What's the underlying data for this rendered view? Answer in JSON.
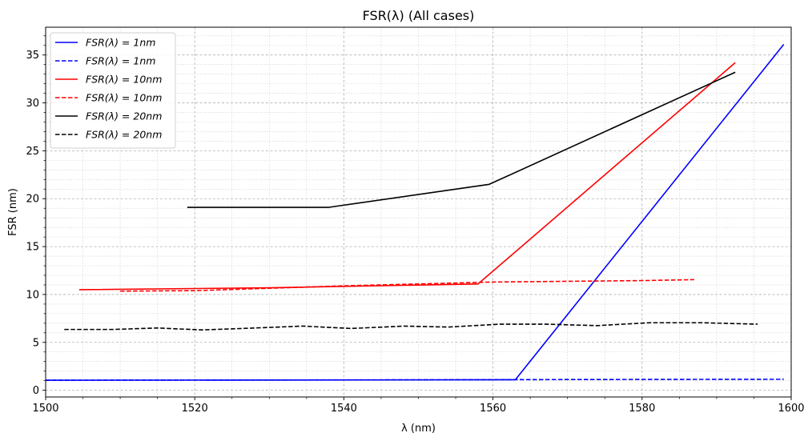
{
  "chart_data": {
    "type": "line",
    "title": "FSR(λ) (All cases)",
    "xlabel": "λ (nm)",
    "ylabel": "FSR (nm)",
    "xlim": [
      1500,
      1600
    ],
    "ylim": [
      -0.7,
      37.9
    ],
    "xticks": [
      1500,
      1520,
      1540,
      1560,
      1580,
      1600
    ],
    "yticks": [
      0,
      5,
      10,
      15,
      20,
      25,
      30,
      35
    ],
    "grid": true,
    "legend_position": "top-left",
    "series": [
      {
        "name": "FSR(λ) = 1nm",
        "color": "#0000ff",
        "dash": "solid",
        "x": [
          1500,
          1530,
          1563,
          1599
        ],
        "y": [
          1.05,
          1.07,
          1.1,
          36.1
        ]
      },
      {
        "name": "FSR(λ) = 1nm",
        "color": "#0000ff",
        "dash": "dashed",
        "x": [
          1500,
          1540,
          1570,
          1599
        ],
        "y": [
          1.05,
          1.08,
          1.12,
          1.15
        ]
      },
      {
        "name": "FSR(λ) = 10nm",
        "color": "#ff0000",
        "dash": "solid",
        "x": [
          1504.5,
          1530,
          1558,
          1592.5
        ],
        "y": [
          10.5,
          10.7,
          11.1,
          34.2
        ]
      },
      {
        "name": "FSR(λ) = 10nm",
        "color": "#ff0000",
        "dash": "dashed",
        "x": [
          1510,
          1520,
          1540,
          1560,
          1580,
          1587
        ],
        "y": [
          10.35,
          10.4,
          10.9,
          11.3,
          11.45,
          11.55
        ]
      },
      {
        "name": "FSR(λ) = 20nm",
        "color": "#000000",
        "dash": "solid",
        "x": [
          1519,
          1538,
          1559.5,
          1592.5
        ],
        "y": [
          19.1,
          19.1,
          21.5,
          33.2
        ]
      },
      {
        "name": "FSR(λ) = 20nm",
        "color": "#000000",
        "dash": "dashed",
        "x": [
          1502.5,
          1509,
          1515,
          1521,
          1528,
          1534.5,
          1541,
          1548,
          1554,
          1561,
          1567,
          1574,
          1581,
          1588,
          1595.5
        ],
        "y": [
          6.35,
          6.35,
          6.5,
          6.3,
          6.5,
          6.7,
          6.45,
          6.7,
          6.6,
          6.9,
          6.9,
          6.75,
          7.05,
          7.05,
          6.9
        ]
      }
    ]
  }
}
